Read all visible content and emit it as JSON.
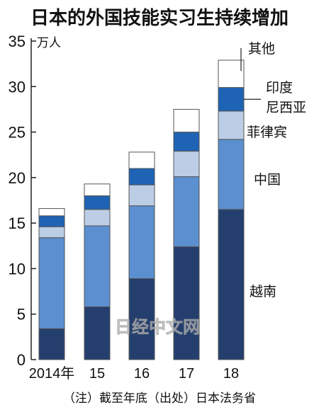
{
  "title": "日本的外国技能实习生持续增加",
  "unit_label": "万人",
  "note": "（注）截至年底（出处）日本法务省",
  "watermark": "日经中文网",
  "chart_data": {
    "type": "bar",
    "stacked": true,
    "categories": [
      "2014年",
      "15",
      "16",
      "17",
      "18"
    ],
    "ylim": [
      0,
      35
    ],
    "yticks": [
      0,
      5,
      10,
      15,
      20,
      25,
      30,
      35
    ],
    "ylabel": "万人",
    "grid": false,
    "series": [
      {
        "name": "越南",
        "color": "#243f6e",
        "values": [
          3.4,
          5.8,
          8.9,
          12.4,
          16.5
        ]
      },
      {
        "name": "中国",
        "color": "#5b8fcf",
        "values": [
          10.0,
          8.9,
          8.0,
          7.7,
          7.7
        ]
      },
      {
        "name": "菲律宾",
        "color": "#bccde6",
        "values": [
          1.2,
          1.8,
          2.3,
          2.8,
          3.1
        ]
      },
      {
        "name": "印度尼西亚",
        "color": "#1e63b4",
        "values": [
          1.2,
          1.5,
          1.8,
          2.1,
          2.6
        ]
      },
      {
        "name": "其他",
        "color": "#ffffff",
        "values": [
          0.8,
          1.3,
          1.8,
          2.5,
          3.0
        ]
      }
    ]
  }
}
